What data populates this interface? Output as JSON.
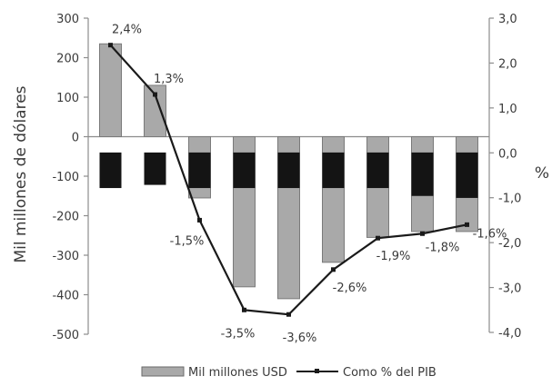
{
  "chart_data": {
    "type": "bar",
    "title": "",
    "ylabel": "Mil millones de dólares",
    "y2label": "%",
    "ylim": [
      -500,
      300
    ],
    "y2lim": [
      -4.0,
      3.0
    ],
    "yticks": [
      "300",
      "200",
      "100",
      "0",
      "-100",
      "-200",
      "-300",
      "-400",
      "-500"
    ],
    "y2ticks": [
      "3,0",
      "2,0",
      "1,0",
      "0,0",
      "-1,0",
      "-2,0",
      "-3,0",
      "-4,0"
    ],
    "categories": [
      "",
      "",
      "",
      "",
      "",
      "",
      "",
      "",
      ""
    ],
    "series": [
      {
        "name": "Mil millones USD",
        "type": "bar",
        "axis": "left",
        "values": [
          235,
          130,
          -155,
          -380,
          -410,
          -318,
          -255,
          -240,
          -240
        ],
        "dark_band": [
          [
            -40,
            -130
          ],
          [
            -40,
            -122
          ],
          [
            -40,
            -130
          ],
          [
            -40,
            -130
          ],
          [
            -40,
            -130
          ],
          [
            -40,
            -130
          ],
          [
            -40,
            -130
          ],
          [
            -40,
            -150
          ],
          [
            -40,
            -155
          ]
        ],
        "color": "#a9a9a9"
      },
      {
        "name": "Como % del PIB",
        "type": "line",
        "axis": "right",
        "values": [
          2.4,
          1.3,
          -1.5,
          -3.5,
          -3.6,
          -2.6,
          -1.9,
          -1.8,
          -1.6
        ],
        "labels": [
          "2,4%",
          "1,3%",
          "-1,5%",
          "-3,5%",
          "-3,6%",
          "-2,6%",
          "-1,9%",
          "-1,8%",
          "-1,6%"
        ],
        "color": "#1a1a1a"
      }
    ],
    "legend": "bottom",
    "grid": false
  }
}
